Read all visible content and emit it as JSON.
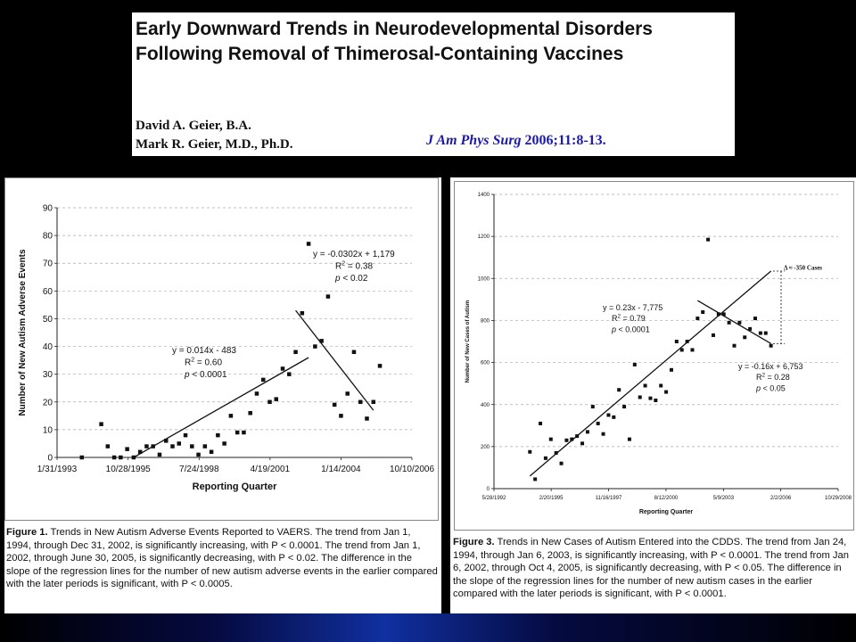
{
  "title": {
    "heading": "Early Downward Trends in Neurodevelopmental Disorders Following Removal of Thimerosal-Containing Vaccines",
    "author1": "David A. Geier, B.A.",
    "author2": "Mark R. Geier, M.D., Ph.D.",
    "journal": "J Am Phys Surg",
    "citation_rest": "2006;11:8-13."
  },
  "caption1": {
    "figure": "Figure 1.",
    "text": "Trends in New Autism Adverse Events Reported to VAERS. The trend from Jan 1, 1994, through Dec 31, 2002, is significantly increasing, with P < 0.0001. The trend from Jan 1, 2002, through June 30, 2005, is significantly decreasing, with P < 0.02. The difference in the slope of the regression lines for the number of new autism adverse events in the earlier compared with the later periods is significant, with P < 0.0005."
  },
  "caption2": {
    "figure": "Figure 3.",
    "text": "Trends in New Cases of Autism Entered into the CDDS. The trend from Jan 24, 1994, through Jan 6, 2003, is significantly increasing, with P < 0.0001. The trend from Jan 6, 2002, through Oct 4, 2005, is significantly decreasing, with P < 0.05. The difference in the slope of the regression lines for the number of new autism cases in the earlier compared with the later periods is significant, with P < 0.0001."
  },
  "chart_data": [
    {
      "type": "scatter",
      "xlabel": "Reporting Quarter",
      "ylabel": "Number of New Autism Adverse Events",
      "x_ticks": [
        "1/31/1993",
        "10/28/1995",
        "7/24/1998",
        "4/19/2001",
        "1/14/2004",
        "10/10/2006"
      ],
      "ylim": [
        0,
        90
      ],
      "y_ticks": [
        0,
        10,
        20,
        30,
        40,
        50,
        60,
        70,
        80,
        90
      ],
      "grid": true,
      "points": [
        {
          "x": "1994-01",
          "y": 0
        },
        {
          "x": "1994-10",
          "y": 12
        },
        {
          "x": "1995-01",
          "y": 4
        },
        {
          "x": "1995-04",
          "y": 0
        },
        {
          "x": "1995-07",
          "y": 0
        },
        {
          "x": "1995-10",
          "y": 3
        },
        {
          "x": "1996-01",
          "y": 0
        },
        {
          "x": "1996-04",
          "y": 2
        },
        {
          "x": "1996-07",
          "y": 4
        },
        {
          "x": "1996-10",
          "y": 4
        },
        {
          "x": "1997-01",
          "y": 1
        },
        {
          "x": "1997-04",
          "y": 6
        },
        {
          "x": "1997-07",
          "y": 4
        },
        {
          "x": "1997-10",
          "y": 5
        },
        {
          "x": "1998-01",
          "y": 8
        },
        {
          "x": "1998-04",
          "y": 4
        },
        {
          "x": "1998-07",
          "y": 1
        },
        {
          "x": "1998-10",
          "y": 4
        },
        {
          "x": "1999-01",
          "y": 2
        },
        {
          "x": "1999-04",
          "y": 8
        },
        {
          "x": "1999-07",
          "y": 5
        },
        {
          "x": "1999-10",
          "y": 15
        },
        {
          "x": "2000-01",
          "y": 9
        },
        {
          "x": "2000-04",
          "y": 9
        },
        {
          "x": "2000-07",
          "y": 16
        },
        {
          "x": "2000-10",
          "y": 23
        },
        {
          "x": "2001-01",
          "y": 28
        },
        {
          "x": "2001-04",
          "y": 20
        },
        {
          "x": "2001-07",
          "y": 21
        },
        {
          "x": "2001-10",
          "y": 32
        },
        {
          "x": "2002-01",
          "y": 30
        },
        {
          "x": "2002-04",
          "y": 38
        },
        {
          "x": "2002-07",
          "y": 52
        },
        {
          "x": "2002-10",
          "y": 77
        },
        {
          "x": "2003-01",
          "y": 40
        },
        {
          "x": "2003-04",
          "y": 42
        },
        {
          "x": "2003-07",
          "y": 58
        },
        {
          "x": "2003-10",
          "y": 19
        },
        {
          "x": "2004-01",
          "y": 15
        },
        {
          "x": "2004-04",
          "y": 23
        },
        {
          "x": "2004-07",
          "y": 38
        },
        {
          "x": "2004-10",
          "y": 20
        },
        {
          "x": "2005-01",
          "y": 14
        },
        {
          "x": "2005-04",
          "y": 20
        },
        {
          "x": "2005-07",
          "y": 33
        }
      ],
      "trendlines": [
        {
          "from": {
            "x": "1996-01",
            "y": 0
          },
          "to": {
            "x": "2002-10",
            "y": 36
          },
          "equation": "y = 0.014x - 483",
          "r2": "R",
          "r2_sup": "2",
          "r2_val": " = 0.60",
          "p_label": "p",
          "p_val": " < 0.0001"
        },
        {
          "from": {
            "x": "2002-04",
            "y": 53
          },
          "to": {
            "x": "2005-04",
            "y": 17
          },
          "equation": "y = -0.0302x + 1,179",
          "r2": "R",
          "r2_sup": "2",
          "r2_val": " = 0.38",
          "p_label": "p",
          "p_val": " < 0.02"
        }
      ]
    },
    {
      "type": "scatter",
      "xlabel": "Reporting Quarter",
      "ylabel": "Number of New Cases of Autism",
      "x_ticks": [
        "5/28/1992",
        "2/20/1995",
        "11/16/1997",
        "8/12/2000",
        "5/9/2003",
        "2/2/2006",
        "10/29/2008"
      ],
      "ylim": [
        0,
        1400
      ],
      "y_ticks": [
        0,
        200,
        400,
        600,
        800,
        1000,
        1200,
        1400
      ],
      "grid": true,
      "points": [
        {
          "x": "1994-02",
          "y": 175
        },
        {
          "x": "1994-05",
          "y": 45
        },
        {
          "x": "1994-08",
          "y": 310
        },
        {
          "x": "1994-11",
          "y": 145
        },
        {
          "x": "1995-02",
          "y": 235
        },
        {
          "x": "1995-05",
          "y": 170
        },
        {
          "x": "1995-08",
          "y": 120
        },
        {
          "x": "1995-11",
          "y": 230
        },
        {
          "x": "1996-02",
          "y": 235
        },
        {
          "x": "1996-05",
          "y": 250
        },
        {
          "x": "1996-08",
          "y": 215
        },
        {
          "x": "1996-11",
          "y": 270
        },
        {
          "x": "1997-02",
          "y": 390
        },
        {
          "x": "1997-05",
          "y": 310
        },
        {
          "x": "1997-08",
          "y": 260
        },
        {
          "x": "1997-11",
          "y": 350
        },
        {
          "x": "1998-02",
          "y": 340
        },
        {
          "x": "1998-05",
          "y": 470
        },
        {
          "x": "1998-08",
          "y": 390
        },
        {
          "x": "1998-11",
          "y": 235
        },
        {
          "x": "1999-02",
          "y": 590
        },
        {
          "x": "1999-05",
          "y": 435
        },
        {
          "x": "1999-08",
          "y": 490
        },
        {
          "x": "1999-11",
          "y": 430
        },
        {
          "x": "2000-02",
          "y": 420
        },
        {
          "x": "2000-05",
          "y": 490
        },
        {
          "x": "2000-08",
          "y": 460
        },
        {
          "x": "2000-11",
          "y": 565
        },
        {
          "x": "2001-02",
          "y": 700
        },
        {
          "x": "2001-05",
          "y": 660
        },
        {
          "x": "2001-08",
          "y": 700
        },
        {
          "x": "2001-11",
          "y": 660
        },
        {
          "x": "2002-02",
          "y": 810
        },
        {
          "x": "2002-05",
          "y": 840
        },
        {
          "x": "2002-08",
          "y": 1185
        },
        {
          "x": "2002-11",
          "y": 730
        },
        {
          "x": "2003-02",
          "y": 830
        },
        {
          "x": "2003-05",
          "y": 830
        },
        {
          "x": "2003-08",
          "y": 790
        },
        {
          "x": "2003-11",
          "y": 680
        },
        {
          "x": "2004-02",
          "y": 790
        },
        {
          "x": "2004-05",
          "y": 720
        },
        {
          "x": "2004-08",
          "y": 760
        },
        {
          "x": "2004-11",
          "y": 810
        },
        {
          "x": "2005-02",
          "y": 740
        },
        {
          "x": "2005-05",
          "y": 740
        },
        {
          "x": "2005-08",
          "y": 680
        }
      ],
      "trendlines": [
        {
          "from": {
            "x": "1994-02",
            "y": 60
          },
          "to": {
            "x": "2005-08",
            "y": 1035
          },
          "equation": "y = 0.23x - 7,775",
          "r2": "R",
          "r2_sup": "2",
          "r2_val": " = 0.79",
          "p_label": "p",
          "p_val": " < 0.0001"
        },
        {
          "from": {
            "x": "2002-02",
            "y": 895
          },
          "to": {
            "x": "2005-08",
            "y": 690
          },
          "equation": "y = -0.16x + 6,753",
          "r2": "R",
          "r2_sup": "2",
          "r2_val": " = 0.28",
          "p_label": "p",
          "p_val": " < 0.05"
        }
      ],
      "annotation": "Δ ≈ -350 Cases"
    }
  ]
}
